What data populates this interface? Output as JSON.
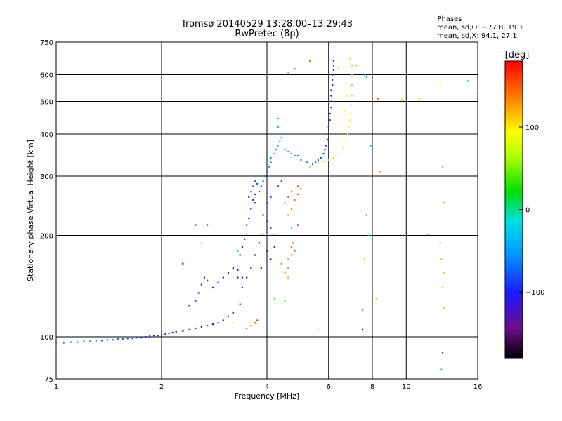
{
  "chart_data": {
    "type": "scatter",
    "title": "Tromsø 20140529 13:28:00–13:29:43",
    "subtitle": "RwPretec (8p)",
    "xlabel": "Frequency [MHz]",
    "ylabel": "Stationary phase Virtual Height [km]",
    "x_scale": "log",
    "y_scale": "log",
    "xlim": [
      1,
      16
    ],
    "ylim": [
      75,
      750
    ],
    "x_ticks": [
      1,
      2,
      4,
      6,
      8,
      10,
      16
    ],
    "x_tick_labels": [
      "1",
      "2",
      "4",
      "6",
      "8",
      "10",
      "16"
    ],
    "y_ticks": [
      75,
      100,
      200,
      300,
      400,
      500,
      600,
      750
    ],
    "y_tick_labels": [
      "75",
      "100",
      "200",
      "300",
      "400",
      "500",
      "600",
      "750"
    ],
    "grid": true,
    "stats": {
      "heading": "Phases",
      "line_o": "mean, sd,O: −77.8, 19.1",
      "line_x": "mean, sd,X:  94.1, 27.1"
    },
    "colorbar": {
      "label": "[deg]",
      "min": -180,
      "max": 180,
      "tick_values": [
        100,
        0,
        -100
      ],
      "tick_labels": [
        "100",
        "0",
        "−100"
      ],
      "colormap": "rainbow"
    },
    "series": [
      {
        "points": [
          [
            1.0,
            96,
            -60
          ],
          [
            1.05,
            96,
            -62
          ],
          [
            1.1,
            96.5,
            -64
          ],
          [
            1.15,
            96.5,
            -66
          ],
          [
            1.2,
            97,
            -68
          ],
          [
            1.25,
            97,
            -70
          ],
          [
            1.3,
            97.5,
            -72
          ],
          [
            1.35,
            97.5,
            -74
          ],
          [
            1.4,
            98,
            -76
          ],
          [
            1.45,
            98,
            -78
          ],
          [
            1.5,
            98.5,
            -80
          ],
          [
            1.55,
            98.5,
            -82
          ],
          [
            1.6,
            99,
            -85
          ],
          [
            1.65,
            99,
            -88
          ],
          [
            1.7,
            99.5,
            -90
          ],
          [
            1.75,
            99.5,
            -92
          ],
          [
            1.8,
            100,
            -95
          ],
          [
            1.85,
            100.5,
            -98
          ],
          [
            1.9,
            101,
            -100
          ],
          [
            1.95,
            101,
            -102
          ],
          [
            2.0,
            101.5,
            -105
          ],
          [
            2.05,
            102,
            -106
          ],
          [
            2.1,
            102.5,
            -108
          ],
          [
            2.15,
            103,
            -108
          ],
          [
            2.2,
            103.5,
            -110
          ],
          [
            2.3,
            104,
            -110
          ],
          [
            2.4,
            105,
            -110
          ],
          [
            2.5,
            106,
            -110
          ],
          [
            2.6,
            107,
            -110
          ],
          [
            2.7,
            108,
            -110
          ],
          [
            2.8,
            109,
            -108
          ],
          [
            2.9,
            110,
            -108
          ],
          [
            3.0,
            112,
            -106
          ],
          [
            3.1,
            115,
            -105
          ],
          [
            3.2,
            118,
            -104
          ]
        ]
      },
      {
        "points": [
          [
            2.4,
            124,
            -105
          ],
          [
            2.5,
            128,
            -105
          ],
          [
            2.55,
            135,
            -106
          ],
          [
            2.6,
            143,
            -106
          ],
          [
            2.65,
            150,
            -107
          ],
          [
            2.7,
            147,
            -108
          ],
          [
            2.8,
            140,
            -108
          ],
          [
            2.9,
            145,
            -108
          ],
          [
            3.0,
            150,
            -106
          ],
          [
            3.1,
            155,
            -105
          ],
          [
            3.2,
            160,
            -104
          ],
          [
            3.3,
            158,
            -102
          ],
          [
            3.3,
            150,
            -100
          ],
          [
            3.35,
            175,
            -104
          ],
          [
            3.4,
            185,
            -104
          ],
          [
            3.45,
            195,
            -105
          ],
          [
            3.5,
            200,
            -105
          ],
          [
            3.5,
            215,
            -106
          ],
          [
            3.55,
            225,
            -108
          ],
          [
            3.6,
            240,
            -100
          ],
          [
            3.65,
            255,
            -95
          ],
          [
            3.7,
            265,
            -90
          ],
          [
            3.6,
            270,
            -85
          ],
          [
            3.65,
            280,
            -80
          ],
          [
            3.7,
            290,
            -75
          ],
          [
            3.75,
            285,
            -72
          ],
          [
            3.7,
            250,
            -92
          ],
          [
            3.55,
            260,
            -86
          ],
          [
            3.8,
            270,
            -80
          ],
          [
            3.85,
            280,
            -76
          ],
          [
            3.9,
            290,
            -72
          ],
          [
            3.95,
            300,
            -68
          ],
          [
            4.0,
            310,
            -65
          ],
          [
            4.05,
            320,
            -62
          ],
          [
            4.1,
            330,
            -60
          ],
          [
            4.1,
            340,
            -58
          ],
          [
            4.2,
            350,
            -55
          ],
          [
            4.25,
            360,
            -52
          ],
          [
            4.3,
            370,
            -50
          ],
          [
            4.35,
            380,
            -48
          ],
          [
            4.3,
            400,
            -46
          ],
          [
            4.3,
            420,
            -44
          ],
          [
            4.3,
            445,
            -42
          ],
          [
            4.4,
            390,
            -48
          ],
          [
            4.5,
            360,
            -52
          ],
          [
            4.6,
            355,
            -54
          ],
          [
            4.7,
            350,
            -56
          ],
          [
            4.8,
            345,
            -58
          ],
          [
            4.9,
            345,
            -60
          ],
          [
            5.0,
            335,
            -60
          ],
          [
            5.2,
            330,
            -62
          ],
          [
            5.4,
            326,
            -64
          ],
          [
            3.9,
            230,
            -95
          ],
          [
            4.0,
            220,
            -96
          ],
          [
            4.1,
            210,
            -98
          ],
          [
            4.2,
            200,
            -100
          ],
          [
            3.9,
            200,
            -98
          ],
          [
            4.0,
            180,
            -100
          ],
          [
            3.8,
            190,
            -102
          ],
          [
            3.7,
            175,
            -104
          ],
          [
            3.6,
            160,
            -106
          ],
          [
            3.5,
            150,
            -108
          ],
          [
            3.4,
            140,
            -110
          ],
          [
            3.85,
            160,
            -102
          ],
          [
            4.1,
            170,
            -100
          ],
          [
            4.2,
            185,
            -98
          ],
          [
            4.0,
            250,
            -90
          ],
          [
            4.1,
            260,
            -88
          ],
          [
            4.3,
            280,
            -84
          ],
          [
            4.4,
            290,
            -82
          ]
        ]
      },
      {
        "points": [
          [
            5.5,
            330,
            -70
          ],
          [
            5.6,
            335,
            -75
          ],
          [
            5.7,
            340,
            -80
          ],
          [
            5.8,
            350,
            -85
          ],
          [
            5.85,
            360,
            -90
          ],
          [
            5.9,
            370,
            -95
          ],
          [
            5.95,
            385,
            -100
          ],
          [
            6.0,
            400,
            -105
          ],
          [
            6.0,
            420,
            -108
          ],
          [
            6.05,
            440,
            -110
          ],
          [
            6.05,
            460,
            -112
          ],
          [
            6.1,
            480,
            -115
          ],
          [
            6.1,
            500,
            -118
          ],
          [
            6.1,
            520,
            -120
          ],
          [
            6.1,
            540,
            -122
          ],
          [
            6.15,
            560,
            -124
          ],
          [
            6.15,
            580,
            -126
          ],
          [
            6.15,
            600,
            -128
          ],
          [
            6.2,
            620,
            -130
          ],
          [
            6.2,
            640,
            -132
          ],
          [
            6.2,
            660,
            -134
          ]
        ]
      },
      {
        "points": [
          [
            5.6,
            330,
            55
          ],
          [
            5.8,
            332,
            60
          ],
          [
            6.0,
            335,
            65
          ],
          [
            6.2,
            340,
            70
          ],
          [
            6.4,
            350,
            75
          ],
          [
            6.6,
            365,
            80
          ],
          [
            6.7,
            380,
            85
          ],
          [
            6.8,
            400,
            90
          ],
          [
            6.85,
            420,
            95
          ],
          [
            6.9,
            440,
            100
          ],
          [
            6.95,
            460,
            105
          ],
          [
            6.95,
            490,
            108
          ],
          [
            7.0,
            520,
            110
          ],
          [
            7.0,
            560,
            115
          ],
          [
            7.0,
            600,
            120
          ],
          [
            7.0,
            640,
            125
          ],
          [
            6.8,
            520,
            105
          ],
          [
            6.7,
            470,
            100
          ]
        ]
      },
      {
        "points": [
          [
            4.5,
            250,
            140
          ],
          [
            4.6,
            260,
            145
          ],
          [
            4.7,
            270,
            150
          ],
          [
            4.8,
            255,
            148
          ],
          [
            4.9,
            265,
            152
          ],
          [
            5.0,
            275,
            155
          ],
          [
            4.7,
            240,
            140
          ],
          [
            4.6,
            230,
            135
          ],
          [
            4.9,
            280,
            150
          ],
          [
            4.6,
            170,
            140
          ],
          [
            4.7,
            175,
            145
          ],
          [
            4.8,
            180,
            150
          ],
          [
            4.6,
            160,
            138
          ],
          [
            4.5,
            155,
            130
          ],
          [
            4.6,
            150,
            125
          ],
          [
            4.4,
            165,
            135
          ],
          [
            4.7,
            185,
            148
          ],
          [
            4.75,
            190,
            152
          ],
          [
            3.6,
            108,
            155
          ],
          [
            3.7,
            110,
            158
          ],
          [
            3.75,
            112,
            160
          ],
          [
            3.5,
            106,
            150
          ]
        ]
      },
      {
        "points": [
          [
            3.35,
            125,
            -120
          ],
          [
            3.4,
            150,
            -115
          ],
          [
            3.2,
            118,
            -108
          ],
          [
            2.3,
            165,
            -100
          ],
          [
            2.5,
            215,
            -105
          ],
          [
            2.7,
            215,
            -108
          ],
          [
            3.3,
            180,
            20
          ],
          [
            3.2,
            110,
            60
          ],
          [
            2.6,
            190,
            120
          ],
          [
            4.6,
            610,
            140
          ],
          [
            4.8,
            625,
            -40
          ],
          [
            5.3,
            660,
            150
          ],
          [
            6.4,
            630,
            110
          ],
          [
            6.9,
            670,
            110
          ],
          [
            7.2,
            640,
            120
          ],
          [
            7.7,
            590,
            -10
          ],
          [
            7.6,
            600,
            -60
          ],
          [
            8.3,
            510,
            150
          ],
          [
            9.7,
            505,
            120
          ],
          [
            10.9,
            510,
            120
          ],
          [
            12.7,
            320,
            130
          ],
          [
            12.8,
            250,
            120
          ],
          [
            12.5,
            190,
            130
          ],
          [
            12.6,
            170,
            120
          ],
          [
            12.8,
            155,
            110
          ],
          [
            12.7,
            140,
            120
          ],
          [
            12.8,
            122,
            120
          ],
          [
            12.7,
            90,
            -150
          ],
          [
            12.6,
            80,
            -30
          ],
          [
            15.0,
            575,
            -40
          ],
          [
            15.8,
            530,
            90
          ],
          [
            12.5,
            565,
            100
          ],
          [
            11.5,
            200,
            -160
          ],
          [
            7.6,
            170,
            120
          ],
          [
            7.5,
            120,
            -30
          ],
          [
            7.5,
            105,
            -170
          ],
          [
            8.2,
            130,
            120
          ],
          [
            7.7,
            230,
            -60
          ],
          [
            7.8,
            200,
            20
          ],
          [
            5.6,
            105,
            60
          ],
          [
            5.3,
            320,
            60
          ],
          [
            4.7,
            210,
            -40
          ],
          [
            4.9,
            215,
            -150
          ],
          [
            4.2,
            130,
            30
          ],
          [
            4.5,
            128,
            40
          ],
          [
            8.4,
            310,
            140
          ],
          [
            7.9,
            370,
            -60
          ]
        ]
      }
    ]
  }
}
